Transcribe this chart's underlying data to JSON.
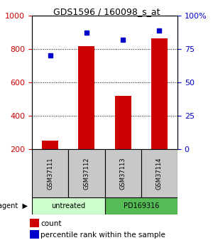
{
  "title": "GDS1596 / 160098_s_at",
  "samples": [
    "GSM37111",
    "GSM37112",
    "GSM37113",
    "GSM37114"
  ],
  "counts": [
    250,
    815,
    520,
    865
  ],
  "percentiles": [
    70,
    87,
    82,
    89
  ],
  "bar_color": "#cc0000",
  "dot_color": "#0000cc",
  "ylim_left": [
    200,
    1000
  ],
  "ylim_right": [
    0,
    100
  ],
  "yticks_left": [
    200,
    400,
    600,
    800,
    1000
  ],
  "yticks_right": [
    0,
    25,
    50,
    75,
    100
  ],
  "groups": [
    {
      "label": "untreated",
      "samples": [
        0,
        1
      ],
      "color": "#ccffcc"
    },
    {
      "label": "PD169316",
      "samples": [
        2,
        3
      ],
      "color": "#55bb55"
    }
  ],
  "legend_count_label": "count",
  "legend_pct_label": "percentile rank within the sample"
}
